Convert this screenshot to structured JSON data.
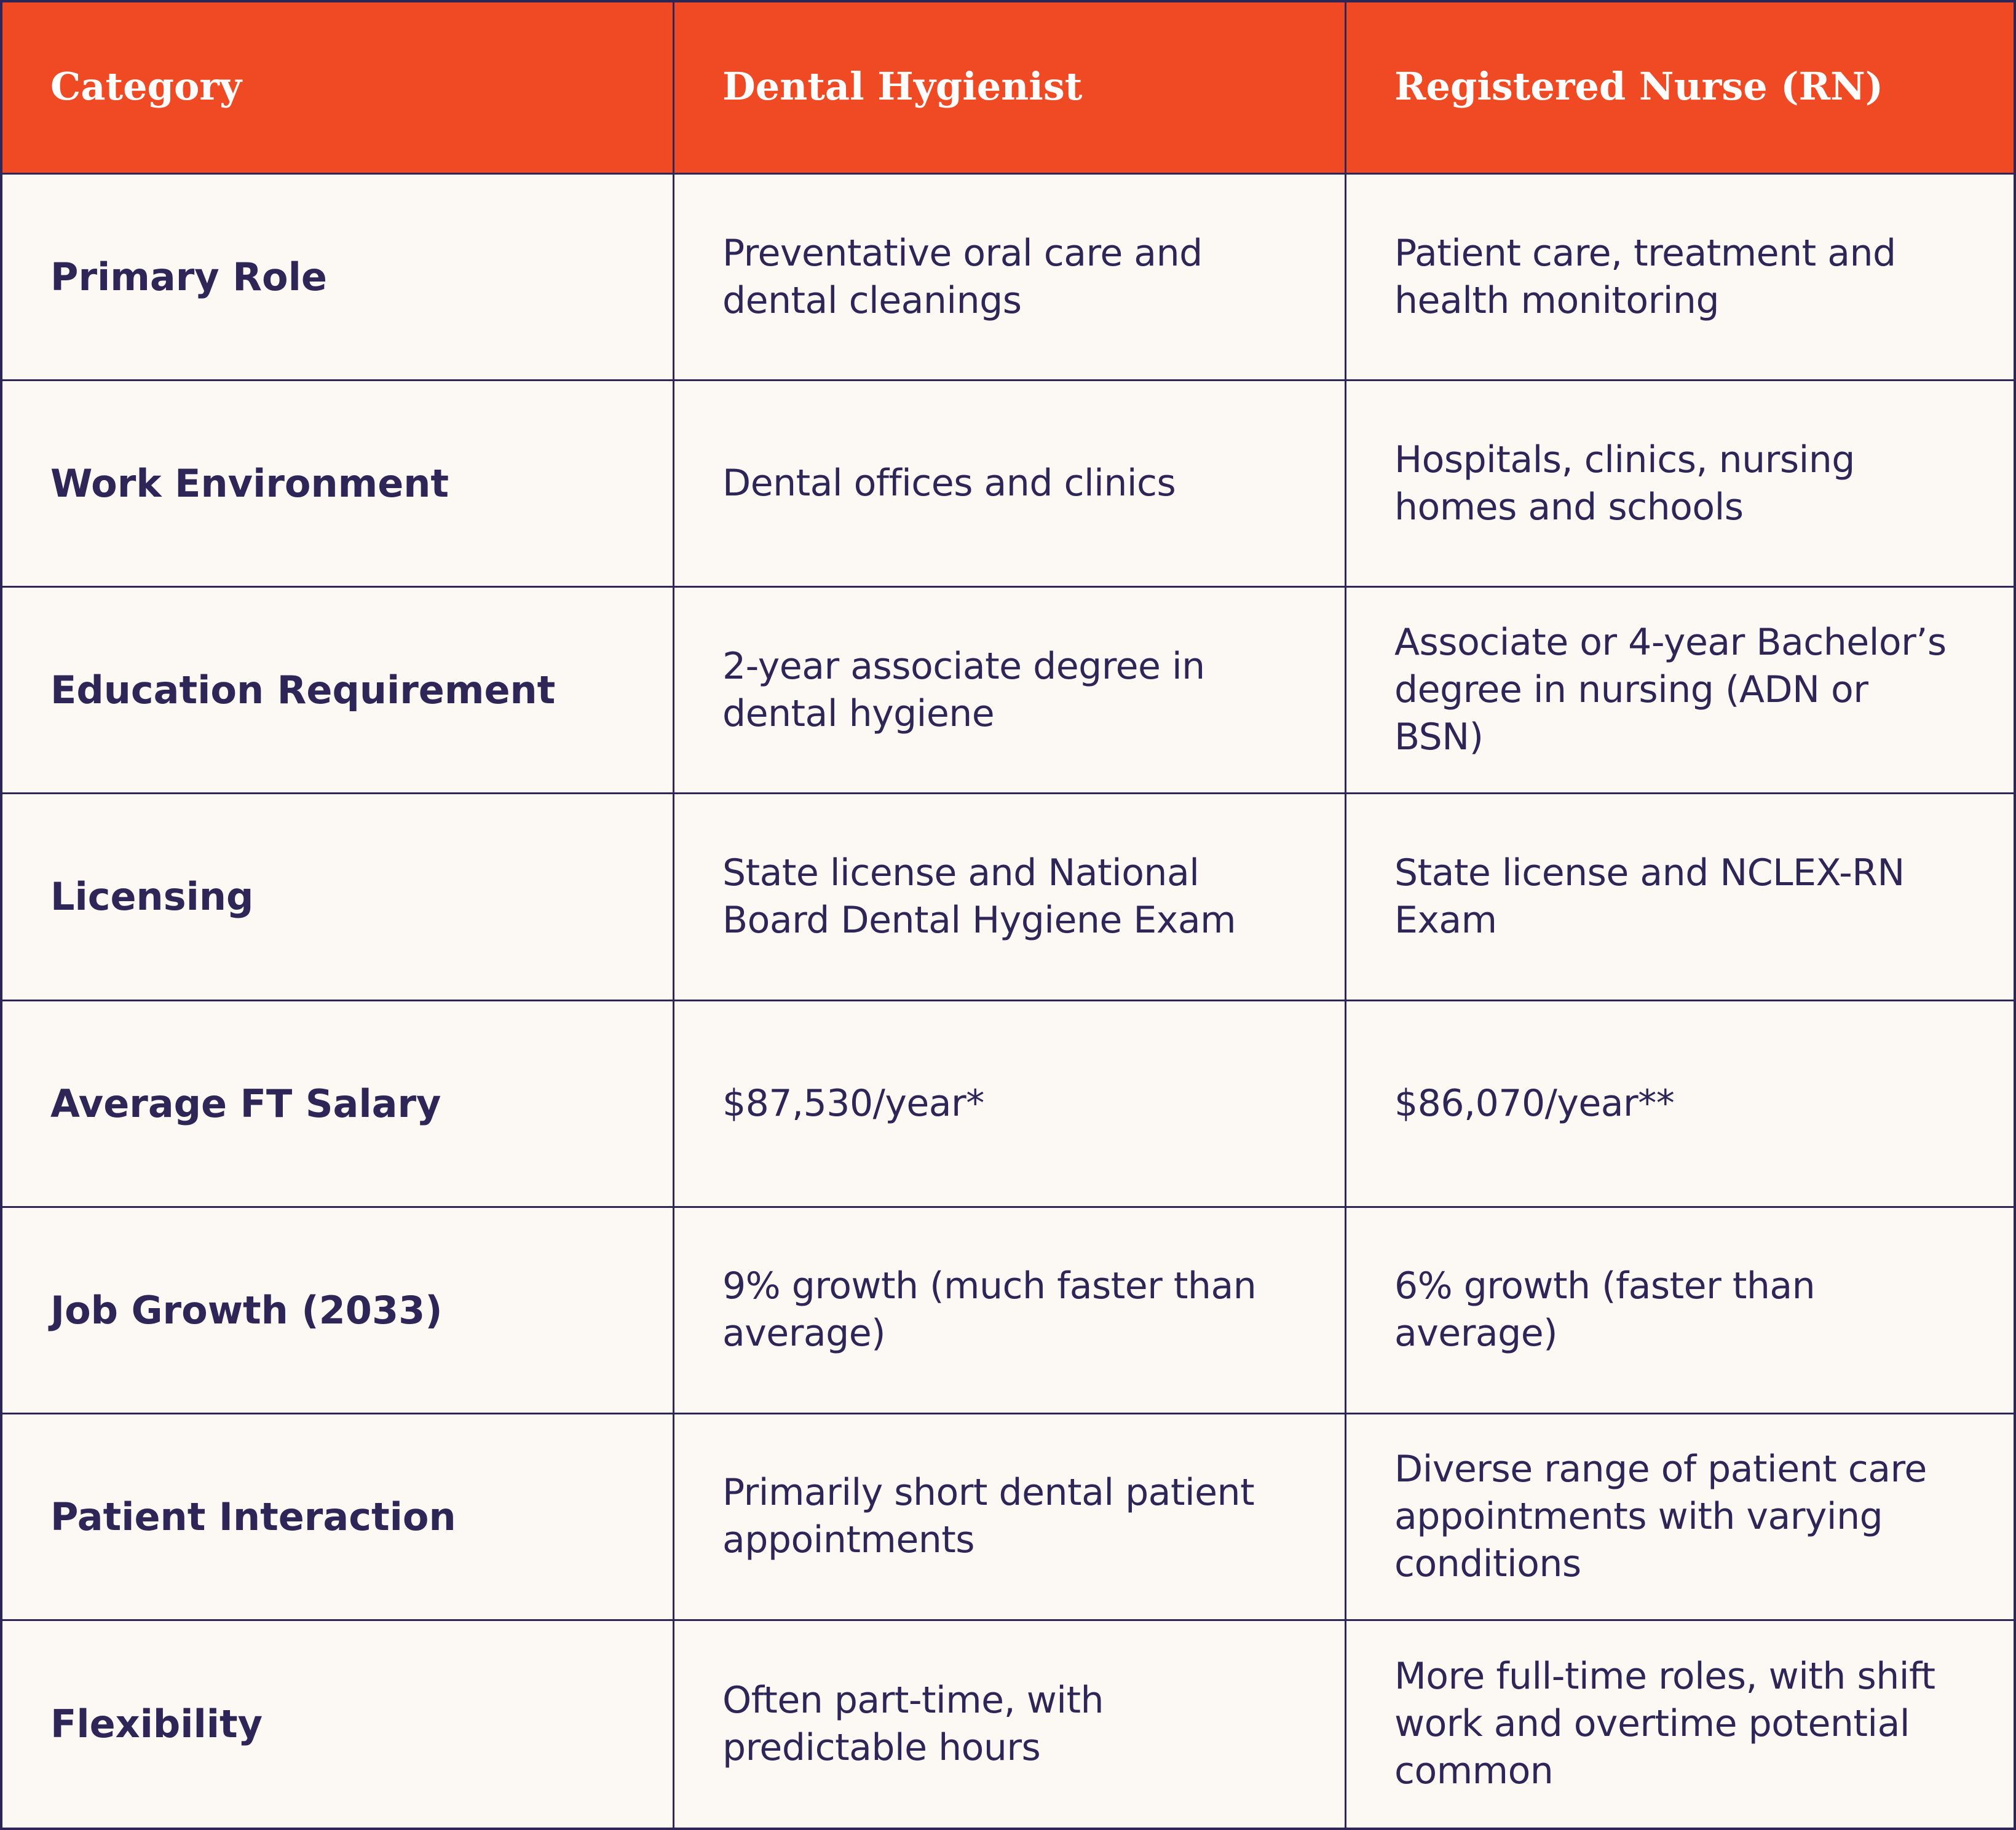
{
  "header": {
    "category": "Category",
    "dental": "Dental Hygienist",
    "nurse": "Registered Nurse (RN)"
  },
  "rows": [
    {
      "label": "Primary Role",
      "dental": "Preventative oral care and dental cleanings",
      "nurse": "Patient care, treatment and health monitoring"
    },
    {
      "label": "Work Environment",
      "dental": "Dental offices and clinics",
      "nurse": "Hospitals, clinics, nursing homes and schools"
    },
    {
      "label": "Education Requirement",
      "dental": "2-year associate degree in dental hygiene",
      "nurse": "Associate or 4-year Bachelor’s degree in nursing (ADN or BSN)"
    },
    {
      "label": "Licensing",
      "dental": "State license and National Board Dental Hygiene Exam",
      "nurse": "State license and NCLEX-RN Exam"
    },
    {
      "label": "Average FT Salary",
      "dental": "$87,530/year*",
      "nurse": "$86,070/year**"
    },
    {
      "label": "Job Growth (2033)",
      "dental": "9% growth (much faster than average)",
      "nurse": "6% growth (faster than average)"
    },
    {
      "label": "Patient Interaction",
      "dental": "Primarily short dental patient appointments",
      "nurse": "Diverse range of patient care appointments with varying conditions"
    },
    {
      "label": "Flexibility",
      "dental": "Often part-time, with predictable hours",
      "nurse": "More full-time roles, with shift work and overtime potential common"
    }
  ],
  "colors": {
    "header_bg": "#f04a24",
    "header_text": "#ffffff",
    "body_bg": "#fcf8f4",
    "text": "#2e2656",
    "border": "#2e2656"
  }
}
